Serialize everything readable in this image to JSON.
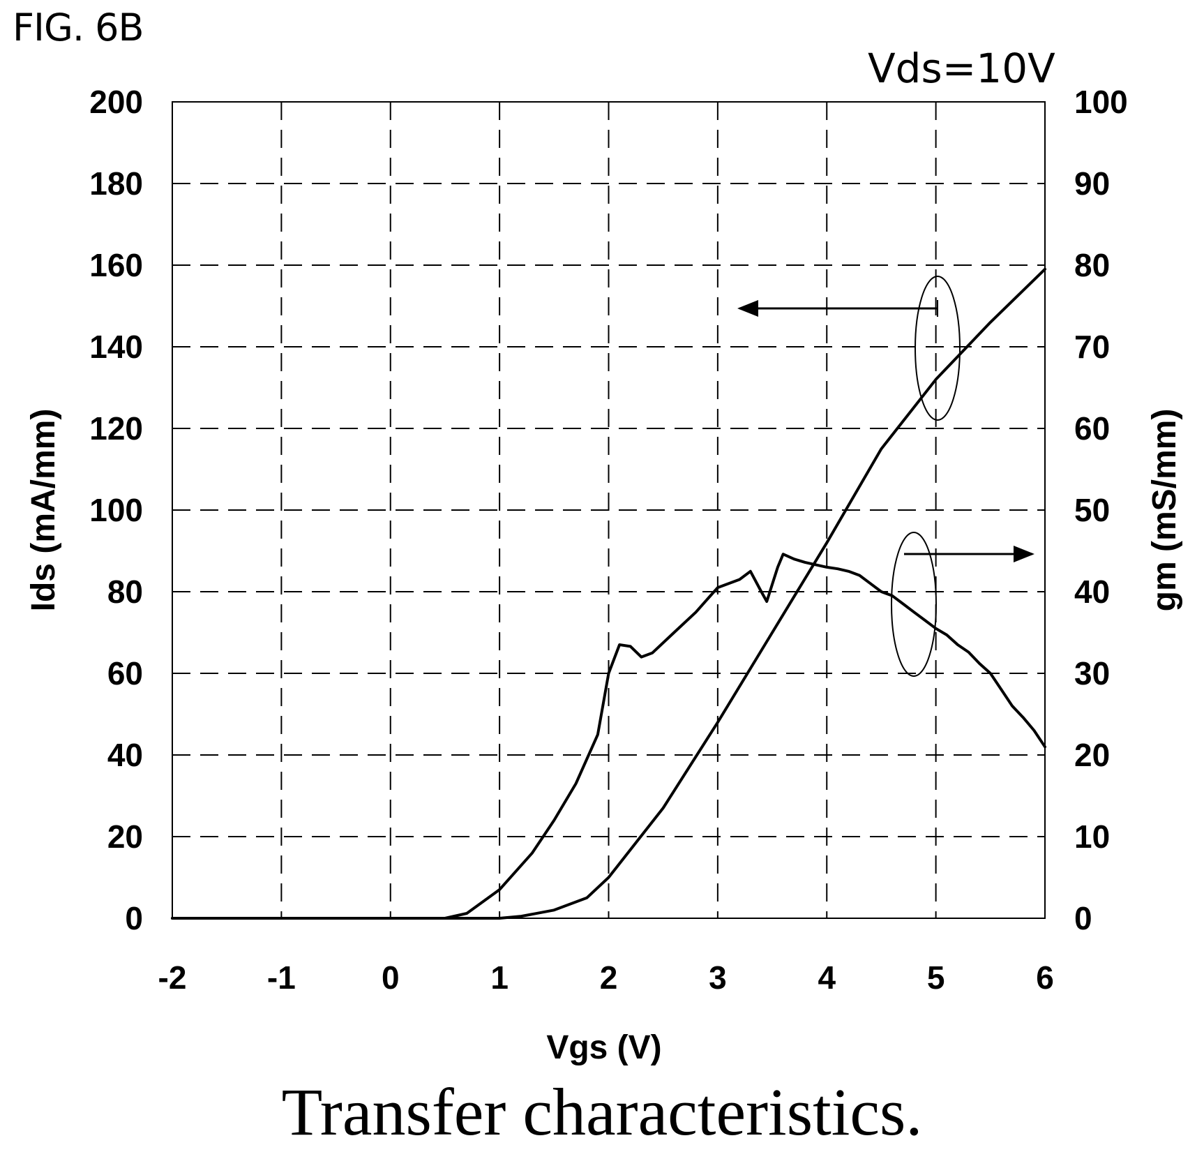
{
  "figure_label": "FIG. 6B",
  "condition_label": "Vds=10V",
  "caption": "Transfer characteristics.",
  "chart_data": {
    "type": "line",
    "title": "",
    "xlabel": "Vgs (V)",
    "ylabel": "Ids (mA/mm)",
    "y2label": "gm (mS/mm)",
    "xlim": [
      -2,
      6
    ],
    "ylim": [
      0,
      200
    ],
    "y2lim": [
      0,
      100
    ],
    "xticks": [
      "-2",
      "-1",
      "0",
      "1",
      "2",
      "3",
      "4",
      "5",
      "6"
    ],
    "yticks": [
      "0",
      "20",
      "40",
      "60",
      "80",
      "100",
      "120",
      "140",
      "160",
      "180",
      "200"
    ],
    "y2ticks": [
      "0",
      "10",
      "20",
      "30",
      "40",
      "50",
      "60",
      "70",
      "80",
      "90",
      "100"
    ],
    "grid": true,
    "grid_style": "dashed",
    "line_color": "#000000",
    "series": [
      {
        "axis": "left",
        "x": [
          -2,
          -1,
          0,
          0.5,
          1.0,
          1.2,
          1.5,
          1.8,
          2.0,
          2.5,
          3.0,
          3.5,
          4.0,
          4.5,
          5.0,
          5.5,
          6.0
        ],
        "y": [
          0,
          0,
          0,
          0,
          0,
          0.5,
          2,
          5,
          10,
          27,
          48,
          70,
          92,
          115,
          132,
          146,
          159
        ]
      },
      {
        "axis": "right",
        "x": [
          -2,
          -1,
          0,
          0.5,
          0.7,
          1.0,
          1.3,
          1.5,
          1.7,
          1.9,
          2.0,
          2.1,
          2.2,
          2.3,
          2.4,
          2.6,
          2.8,
          2.9,
          3.0,
          3.2,
          3.3,
          3.4,
          3.45,
          3.55,
          3.6,
          3.7,
          3.8,
          3.9,
          4.0,
          4.1,
          4.2,
          4.3,
          4.4,
          4.5,
          4.6,
          4.7,
          4.8,
          4.9,
          5.0,
          5.1,
          5.2,
          5.3,
          5.4,
          5.5,
          5.6,
          5.7,
          5.8,
          5.9,
          6.0
        ],
        "y": [
          0,
          0,
          0,
          0,
          0.6,
          3.5,
          8,
          12,
          16.5,
          22.5,
          30,
          33.5,
          33.3,
          32,
          32.5,
          35,
          37.5,
          39,
          40.5,
          41.5,
          42.5,
          40,
          38.8,
          43,
          44.6,
          44,
          43.6,
          43.3,
          43,
          42.8,
          42.5,
          42,
          41,
          40,
          39.5,
          38.5,
          37.5,
          36.5,
          35.5,
          34.7,
          33.5,
          32.6,
          31.2,
          30,
          28,
          26,
          24.6,
          23,
          21
        ]
      }
    ],
    "annotations": [
      "left-arrow (Ids curve reads left axis)",
      "right-arrow (gm curve reads right axis)"
    ]
  }
}
